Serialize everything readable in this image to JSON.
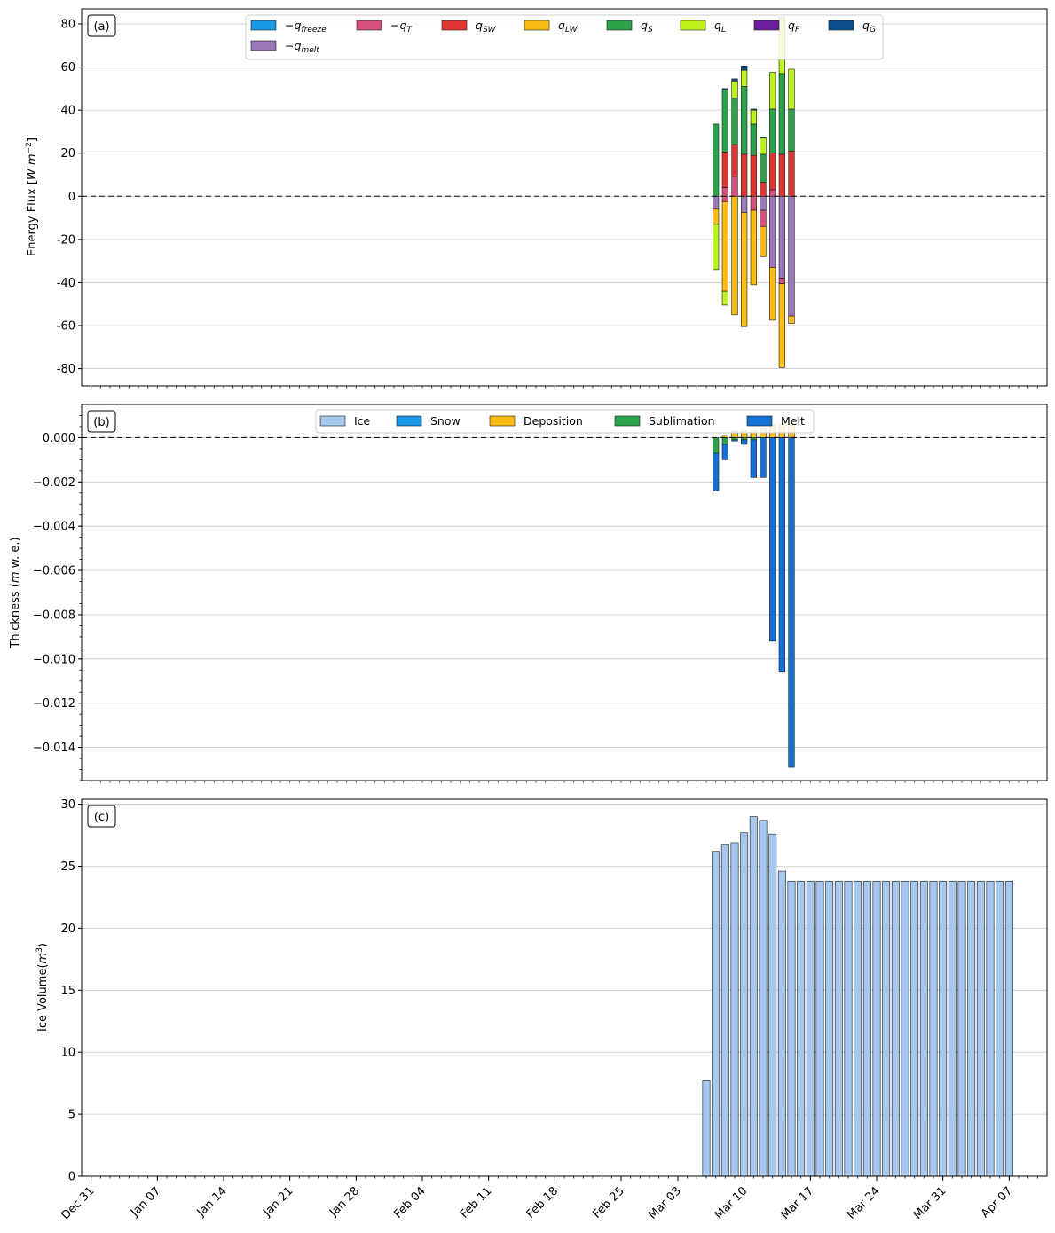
{
  "colors": {
    "q_freeze": "#1a9ae6",
    "q_T": "#d6517d",
    "q_SW": "#e03530",
    "q_LW": "#fbbc14",
    "q_S": "#2ca24a",
    "q_L": "#bdf21c",
    "q_F": "#6f1ea0",
    "q_G": "#0b4f8f",
    "q_melt": "#9b76b8",
    "ice": "#a6c8ef",
    "snow": "#1a9ae6",
    "deposition": "#fbbc14",
    "sublimation": "#2ca24a",
    "melt": "#1670d6",
    "grid": "#c8c8c8"
  },
  "chart_data": [
    {
      "panel": "(a)",
      "type": "bar",
      "stacked": true,
      "ylabel": "Energy Flux [W m^-2]",
      "ylim": [
        -88,
        87
      ],
      "yticks": [
        80,
        60,
        40,
        20,
        0,
        -20,
        -40,
        -60,
        -80
      ],
      "grid": true,
      "legend_position": "top-center",
      "zero_line": "dashed",
      "legend": [
        {
          "key": "q_freeze",
          "sign": "−",
          "sym": "q",
          "sub": "freeze"
        },
        {
          "key": "q_T",
          "sign": "−",
          "sym": "q",
          "sub": "T"
        },
        {
          "key": "q_SW",
          "sign": "",
          "sym": "q",
          "sub": "SW"
        },
        {
          "key": "q_LW",
          "sign": "",
          "sym": "q",
          "sub": "LW"
        },
        {
          "key": "q_S",
          "sign": "",
          "sym": "q",
          "sub": "S"
        },
        {
          "key": "q_L",
          "sign": "",
          "sym": "q",
          "sub": "L"
        },
        {
          "key": "q_F",
          "sign": "",
          "sym": "q",
          "sub": "F"
        },
        {
          "key": "q_G",
          "sign": "",
          "sym": "q",
          "sub": "G"
        },
        {
          "key": "q_melt",
          "sign": "−",
          "sym": "q",
          "sub": "melt"
        }
      ],
      "x": [
        "2023-03-07",
        "2023-03-08",
        "2023-03-09",
        "2023-03-10",
        "2023-03-11",
        "2023-03-12",
        "2023-03-13",
        "2023-03-14",
        "2023-03-15"
      ],
      "positive_series": [
        {
          "name": "−q_T",
          "key": "q_T",
          "values": [
            0,
            4,
            9,
            0,
            0,
            0,
            3,
            0,
            0
          ]
        },
        {
          "name": "q_SW",
          "key": "q_SW",
          "values": [
            0,
            16.5,
            15,
            19.5,
            19,
            6.5,
            17,
            19.5,
            21
          ]
        },
        {
          "name": "q_S",
          "key": "q_S",
          "values": [
            33.5,
            29,
            21.5,
            31.5,
            14.5,
            13,
            20.5,
            37.5,
            19.5
          ]
        },
        {
          "name": "q_L",
          "key": "q_L",
          "values": [
            0,
            0,
            8,
            7.5,
            6.5,
            7.5,
            17,
            26,
            18.5
          ]
        },
        {
          "name": "q_G",
          "key": "q_G",
          "values": [
            0,
            0.5,
            1,
            2,
            0.5,
            0.5,
            0,
            0,
            0
          ]
        }
      ],
      "negative_series": [
        {
          "name": "−q_melt",
          "key": "q_melt",
          "values": [
            -6,
            0,
            0,
            -7.5,
            0,
            -6.5,
            -33,
            -38,
            -55.5
          ]
        },
        {
          "name": "−q_T",
          "key": "q_T",
          "values": [
            0,
            -2.5,
            0,
            0,
            -6.5,
            -7.5,
            0,
            -2.5,
            0
          ]
        },
        {
          "name": "q_LW",
          "key": "q_LW",
          "values": [
            -7,
            -41.5,
            -55,
            -53,
            -34.5,
            -14,
            -24.5,
            -39,
            -3.5
          ]
        },
        {
          "name": "q_L",
          "key": "q_L",
          "values": [
            -21,
            -6.5,
            0,
            0,
            0,
            0,
            0,
            0,
            0
          ]
        }
      ]
    },
    {
      "panel": "(b)",
      "type": "bar",
      "stacked": true,
      "ylabel": "Thickness (m w. e.)",
      "ylim": [
        -0.0155,
        0.0015
      ],
      "yticks": [
        "0.000",
        "−0.002",
        "−0.004",
        "−0.006",
        "−0.008",
        "−0.010",
        "−0.012",
        "−0.014"
      ],
      "grid": true,
      "legend_position": "top-center",
      "zero_line": "dashed",
      "legend": [
        {
          "key": "ice",
          "label": "Ice"
        },
        {
          "key": "snow",
          "label": "Snow"
        },
        {
          "key": "deposition",
          "label": "Deposition"
        },
        {
          "key": "sublimation",
          "label": "Sublimation"
        },
        {
          "key": "melt",
          "label": "Melt"
        }
      ],
      "x": [
        "2023-03-07",
        "2023-03-08",
        "2023-03-09",
        "2023-03-10",
        "2023-03-11",
        "2023-03-12",
        "2023-03-13",
        "2023-03-14",
        "2023-03-15"
      ],
      "positive_series": [
        {
          "name": "Deposition",
          "key": "deposition",
          "values": [
            0,
            0.0001,
            0.0003,
            0.0003,
            0.0003,
            0.0004,
            0.0006,
            0.0006,
            0.0006
          ]
        }
      ],
      "negative_series": [
        {
          "name": "Sublimation",
          "key": "sublimation",
          "values": [
            -0.0007,
            -0.0003,
            -0.0001,
            -0.0001,
            -0.0001,
            0,
            0,
            0,
            0
          ]
        },
        {
          "name": "Melt",
          "key": "melt",
          "values": [
            -0.0017,
            -0.0007,
            -5e-05,
            -0.0002,
            -0.0017,
            -0.0018,
            -0.0092,
            -0.0106,
            -0.0149
          ]
        }
      ]
    },
    {
      "panel": "(c)",
      "type": "bar",
      "ylabel": "Ice Volume(m^3)",
      "ylim": [
        0,
        30.4
      ],
      "yticks": [
        0,
        5,
        10,
        15,
        20,
        25,
        30
      ],
      "grid": true,
      "series": [
        {
          "name": "Ice",
          "key": "ice",
          "x_start": "2023-03-06",
          "values": [
            7.7,
            26.2,
            26.7,
            26.9,
            27.7,
            29.0,
            28.7,
            27.6,
            24.6,
            23.8,
            23.8,
            23.8,
            23.8,
            23.8,
            23.8,
            23.8,
            23.8,
            23.8,
            23.8,
            23.8,
            23.8,
            23.8,
            23.8,
            23.8,
            23.8,
            23.8,
            23.8,
            23.8,
            23.8,
            23.8,
            23.8,
            23.8,
            23.8
          ]
        }
      ]
    }
  ],
  "x_axis": {
    "start": "2022-12-30",
    "end": "2023-04-11",
    "tick_labels": [
      "Dec 31",
      "Jan 07",
      "Jan 14",
      "Jan 21",
      "Jan 28",
      "Feb 04",
      "Feb 11",
      "Feb 18",
      "Feb 25",
      "Mar 03",
      "Mar 10",
      "Mar 17",
      "Mar 24",
      "Mar 31",
      "Apr 07"
    ],
    "tick_dates": [
      "2022-12-31",
      "2023-01-07",
      "2023-01-14",
      "2023-01-21",
      "2023-01-28",
      "2023-02-04",
      "2023-02-11",
      "2023-02-18",
      "2023-02-25",
      "2023-03-03",
      "2023-03-10",
      "2023-03-17",
      "2023-03-24",
      "2023-03-31",
      "2023-04-07"
    ]
  }
}
